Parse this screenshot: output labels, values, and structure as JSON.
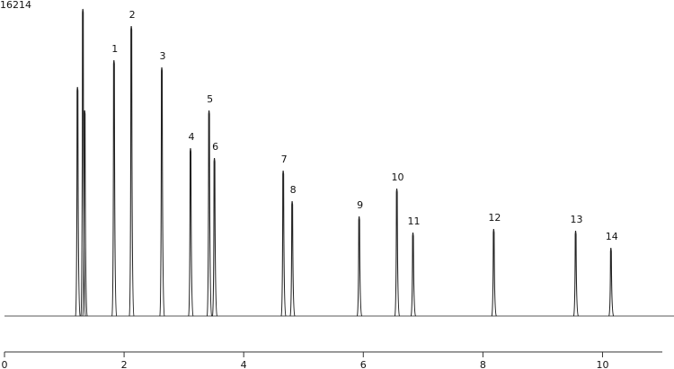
{
  "chart_data": {
    "type": "line",
    "color": "#222222",
    "xlim": [
      0,
      11
    ],
    "xticks": [
      0,
      2,
      4,
      6,
      8,
      10
    ],
    "ylim": [
      0,
      16214
    ],
    "yticks": [
      16214
    ],
    "x": [
      1.22,
      1.31,
      1.34,
      1.83,
      2.12,
      2.63,
      3.11,
      3.42,
      3.51,
      4.66,
      4.81,
      5.93,
      6.56,
      6.83,
      8.18,
      9.55,
      10.14
    ],
    "values": [
      12090,
      16214,
      10860,
      13510,
      15310,
      13130,
      8864,
      10855,
      8342,
      7679,
      6067,
      5261,
      6731,
      4408,
      4598,
      4503,
      3602
    ],
    "labels": [
      null,
      null,
      null,
      "1",
      "2",
      "3",
      "4",
      "5",
      "6",
      "7",
      "8",
      "9",
      "10",
      "11",
      "12",
      "13",
      "14"
    ]
  }
}
